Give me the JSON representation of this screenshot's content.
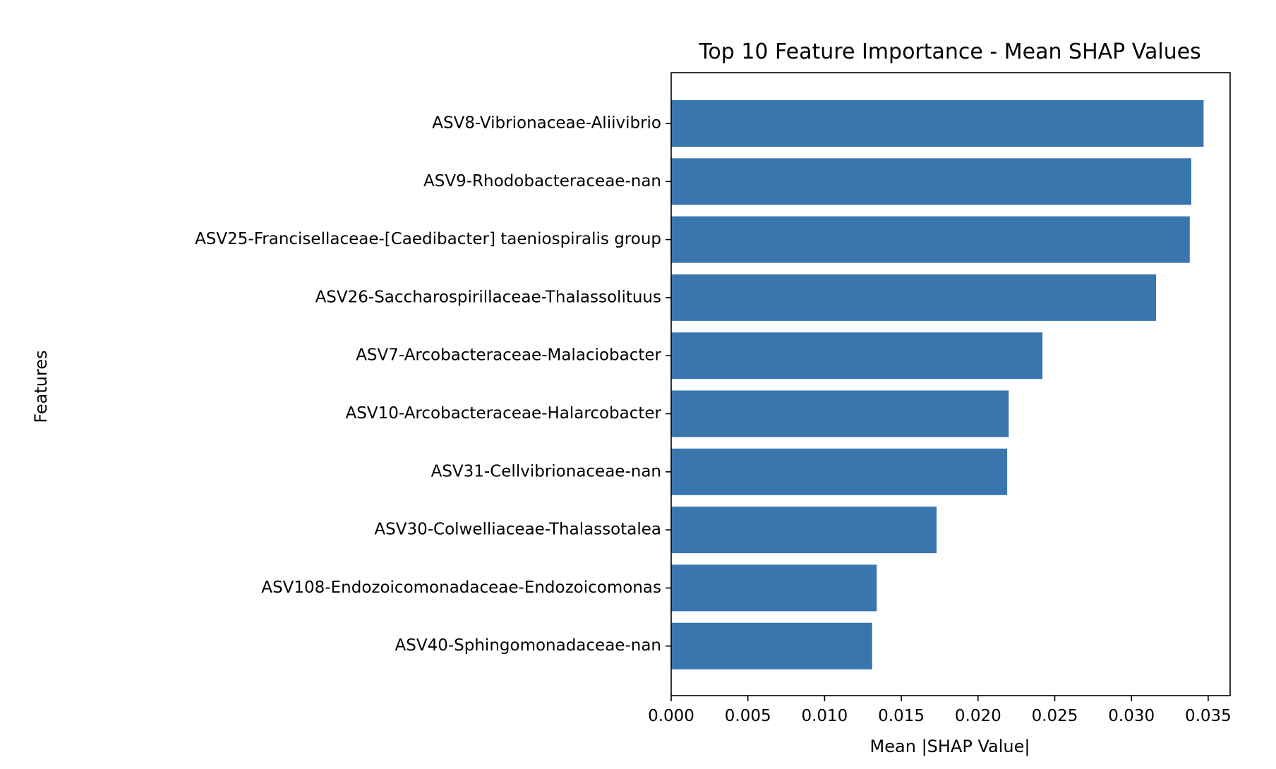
{
  "chart_data": {
    "type": "bar",
    "orientation": "horizontal",
    "title": "Top 10 Feature Importance - Mean SHAP Values",
    "xlabel": "Mean |SHAP Value|",
    "ylabel": "Features",
    "categories": [
      "ASV8-Vibrionaceae-Aliivibrio",
      "ASV9-Rhodobacteraceae-nan",
      "ASV25-Francisellaceae-[Caedibacter] taeniospiralis group",
      "ASV26-Saccharospirillaceae-Thalassolituus",
      "ASV7-Arcobacteraceae-Malaciobacter",
      "ASV10-Arcobacteraceae-Halarcobacter",
      "ASV31-Cellvibrionaceae-nan",
      "ASV30-Colwelliaceae-Thalassotalea",
      "ASV108-Endozoicomonadaceae-Endozoicomonas",
      "ASV40-Sphingomonadaceae-nan"
    ],
    "values": [
      0.0347,
      0.0339,
      0.0338,
      0.0316,
      0.0242,
      0.022,
      0.0219,
      0.0173,
      0.0134,
      0.0131
    ],
    "xticks": [
      "0.000",
      "0.005",
      "0.010",
      "0.015",
      "0.020",
      "0.025",
      "0.030",
      "0.035"
    ],
    "tick_values": [
      0,
      0.005,
      0.01,
      0.015,
      0.02,
      0.025,
      0.03,
      0.035
    ],
    "xlim": [
      0,
      0.03643
    ],
    "grid": false,
    "bar_color": "#3a76ae"
  }
}
